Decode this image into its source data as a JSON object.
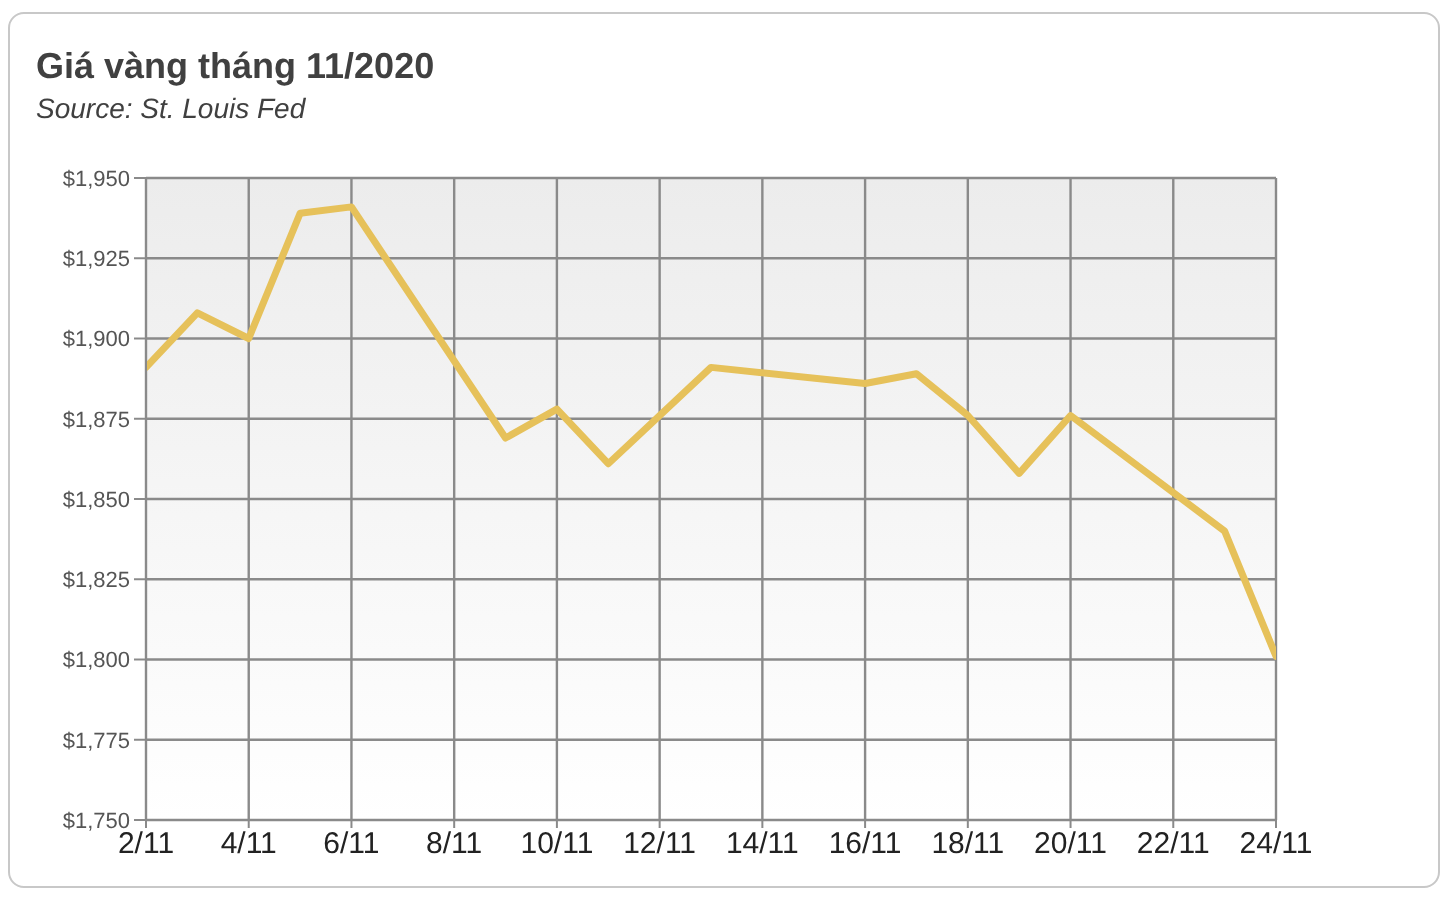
{
  "chart_data": {
    "type": "line",
    "title": "Giá vàng tháng 11/2020",
    "subtitle": "Source: St. Louis Fed",
    "x": [
      "--11-02",
      "--11-03",
      "--11-04",
      "--11-05",
      "--11-06",
      "--11-09",
      "--11-10",
      "--11-11",
      "--11-13",
      "--11-16",
      "--11-17",
      "--11-18",
      "--11-19",
      "--11-20",
      "--11-23",
      "--11-24"
    ],
    "series": [
      {
        "color": "#e6c15a",
        "values": [
          1891,
          1908,
          1900,
          1939,
          1941,
          1869,
          1878,
          1861,
          1891,
          1886,
          1889,
          1876,
          1858,
          1876,
          1840,
          1801
        ]
      }
    ],
    "xlim": [
      "--11-02",
      "--11-24"
    ],
    "xticks": [
      {
        "value": "--11-02",
        "label": "2/11"
      },
      {
        "value": "--11-04",
        "label": "4/11"
      },
      {
        "value": "--11-06",
        "label": "6/11"
      },
      {
        "value": "--11-08",
        "label": "8/11"
      },
      {
        "value": "--11-10",
        "label": "10/11"
      },
      {
        "value": "--11-12",
        "label": "12/11"
      },
      {
        "value": "--11-14",
        "label": "14/11"
      },
      {
        "value": "--11-16",
        "label": "16/11"
      },
      {
        "value": "--11-18",
        "label": "18/11"
      },
      {
        "value": "--11-20",
        "label": "20/11"
      },
      {
        "value": "--11-22",
        "label": "22/11"
      },
      {
        "value": "--11-24",
        "label": "24/11"
      }
    ],
    "ylim": [
      1750,
      1950
    ],
    "yticks": [
      {
        "value": 1750,
        "label": "$1,750"
      },
      {
        "value": 1775,
        "label": "$1,775"
      },
      {
        "value": 1800,
        "label": "$1,800"
      },
      {
        "value": 1825,
        "label": "$1,825"
      },
      {
        "value": 1850,
        "label": "$1,850"
      },
      {
        "value": 1875,
        "label": "$1,875"
      },
      {
        "value": 1900,
        "label": "$1,900"
      },
      {
        "value": 1925,
        "label": "$1,925"
      },
      {
        "value": 1950,
        "label": "$1,950"
      }
    ],
    "grid": true,
    "legend": false,
    "marker": "none",
    "line_style": "solid"
  }
}
